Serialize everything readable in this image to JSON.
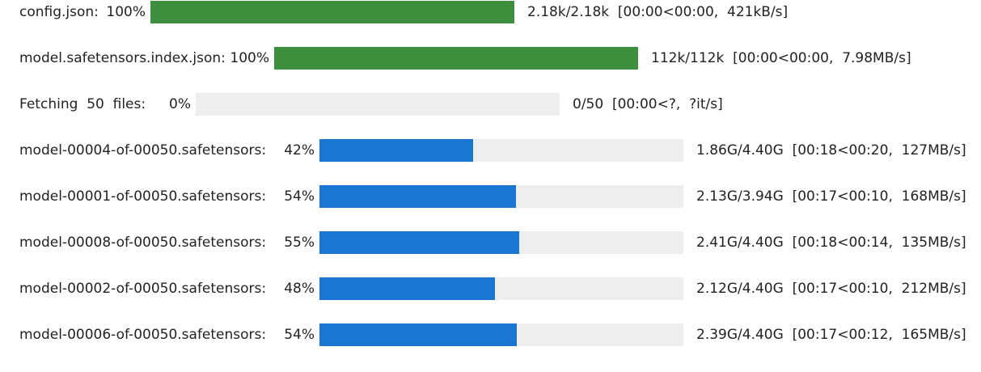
{
  "colors": {
    "complete": "#3d8f3d",
    "active": "#1976d2",
    "track": "#eeeeee"
  },
  "rows": [
    {
      "desc": "config.json:",
      "percent_label": "100%",
      "progress": 1.0,
      "stats": "2.18k/2.18k  [00:00<00:00,  421kB/s]",
      "state": "complete"
    },
    {
      "desc": "model.safetensors.index.json:",
      "percent_label": "100%",
      "progress": 1.0,
      "stats": "112k/112k  [00:00<00:00,  7.98MB/s]",
      "state": "complete"
    },
    {
      "desc": "Fetching  50  files:",
      "percent_label": "0%",
      "progress": 0.0,
      "stats": "0/50  [00:00<?,  ?it/s]",
      "state": "active"
    },
    {
      "desc": "model-00004-of-00050.safetensors:",
      "percent_label": "42%",
      "progress": 0.423,
      "stats": "1.86G/4.40G  [00:18<00:20,  127MB/s]",
      "state": "active"
    },
    {
      "desc": "model-00001-of-00050.safetensors:",
      "percent_label": "54%",
      "progress": 0.541,
      "stats": "2.13G/3.94G  [00:17<00:10,  168MB/s]",
      "state": "active"
    },
    {
      "desc": "model-00008-of-00050.safetensors:",
      "percent_label": "55%",
      "progress": 0.548,
      "stats": "2.41G/4.40G  [00:18<00:14,  135MB/s]",
      "state": "active"
    },
    {
      "desc": "model-00002-of-00050.safetensors:",
      "percent_label": "48%",
      "progress": 0.482,
      "stats": "2.12G/4.40G  [00:17<00:10,  212MB/s]",
      "state": "active"
    },
    {
      "desc": "model-00006-of-00050.safetensors:",
      "percent_label": "54%",
      "progress": 0.543,
      "stats": "2.39G/4.40G  [00:17<00:12,  165MB/s]",
      "state": "active"
    }
  ]
}
